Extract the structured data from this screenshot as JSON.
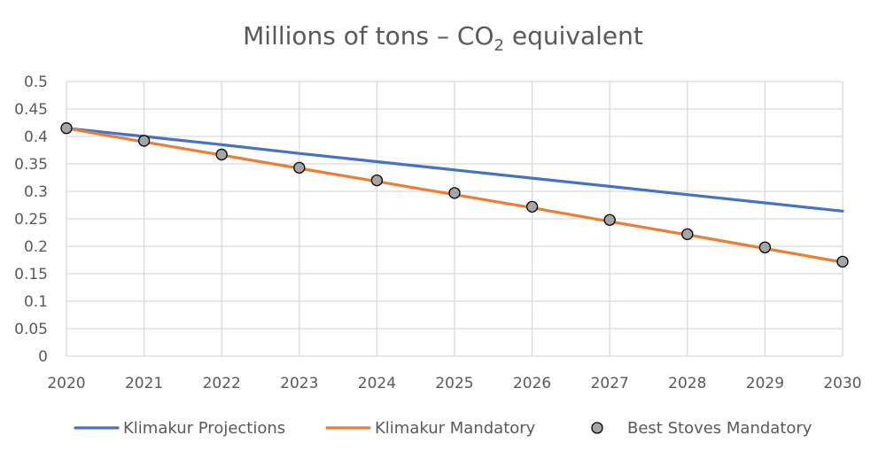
{
  "chart_data": {
    "type": "line",
    "title": {
      "prefix": "Millions of tons – CO",
      "subscript": "2",
      "suffix": " equivalent"
    },
    "x": [
      2020,
      2021,
      2022,
      2023,
      2024,
      2025,
      2026,
      2027,
      2028,
      2029,
      2030
    ],
    "x_tick_labels": [
      "2020",
      "2021",
      "2022",
      "2023",
      "2024",
      "2025",
      "2026",
      "2027",
      "2028",
      "2029",
      "2030"
    ],
    "ylim": [
      0,
      0.5
    ],
    "y_ticks": [
      0,
      0.05,
      0.1,
      0.15,
      0.2,
      0.25,
      0.3,
      0.35,
      0.4,
      0.45,
      0.5
    ],
    "y_tick_labels": [
      "0",
      "0.05",
      "0.1",
      "0.15",
      "0.2",
      "0.25",
      "0.3",
      "0.35",
      "0.4",
      "0.45",
      "0.5"
    ],
    "grid": true,
    "legend_position": "bottom",
    "series": [
      {
        "name": "Klimakur Projections",
        "style": "line",
        "color": "#4472c4",
        "values": [
          0.415,
          0.4,
          0.385,
          0.369,
          0.354,
          0.339,
          0.324,
          0.309,
          0.294,
          0.279,
          0.264
        ]
      },
      {
        "name": "Klimakur Mandatory",
        "style": "line",
        "color": "#ed7d31",
        "values": [
          0.415,
          0.39,
          0.366,
          0.342,
          0.318,
          0.294,
          0.27,
          0.245,
          0.221,
          0.196,
          0.171
        ]
      },
      {
        "name": "Best Stoves Mandatory",
        "style": "marker",
        "color": "#a5a5a5",
        "values": [
          0.415,
          0.392,
          0.367,
          0.343,
          0.32,
          0.297,
          0.272,
          0.248,
          0.222,
          0.198,
          0.172
        ]
      }
    ]
  }
}
